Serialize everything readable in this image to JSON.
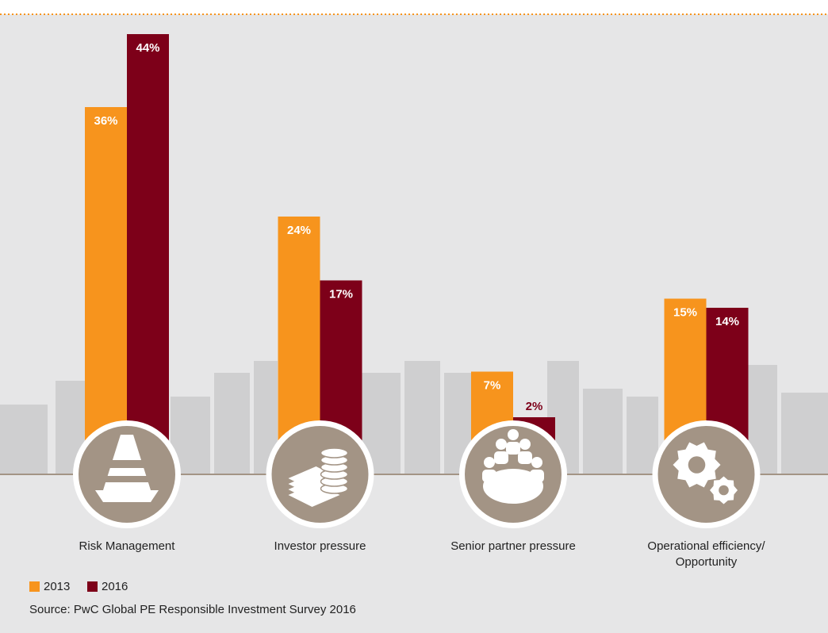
{
  "chart_data": {
    "type": "bar",
    "categories": [
      "Risk Management",
      "Investor pressure",
      "Senior partner pressure",
      "Operational efficiency/ Opportunity"
    ],
    "series": [
      {
        "name": "2013",
        "color": "#f7941d",
        "values": [
          36,
          24,
          7,
          15
        ],
        "value_labels": [
          "36%",
          "24%",
          "7%",
          "15%"
        ]
      },
      {
        "name": "2016",
        "color": "#7d0019",
        "values": [
          44,
          17,
          2,
          14
        ],
        "value_labels": [
          "44%",
          "17%",
          "2%",
          "14%"
        ]
      }
    ],
    "source": "Source: PwC Global PE Responsible Investment Survey 2016"
  }
}
